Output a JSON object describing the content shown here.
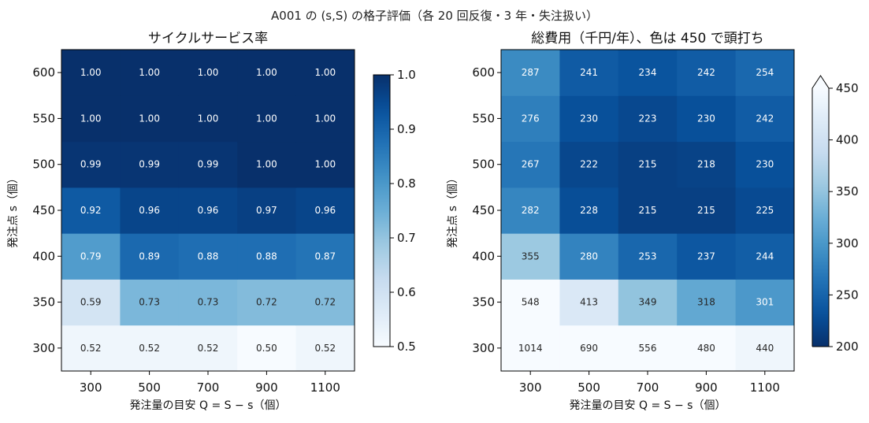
{
  "figure": {
    "suptitle": "A001 の (s,S) の格子評価（各 20 回反復・3 年・失注扱い）"
  },
  "chart_data": [
    {
      "type": "heatmap",
      "title": "サイクルサービス率",
      "xlabel": "発注量の目安 Q = S − s（個）",
      "ylabel": "発注点 s（個）",
      "x": [
        "300",
        "500",
        "700",
        "900",
        "1100"
      ],
      "y": [
        "300",
        "350",
        "400",
        "450",
        "500",
        "550",
        "600"
      ],
      "values": [
        [
          0.52,
          0.52,
          0.52,
          0.5,
          0.52
        ],
        [
          0.59,
          0.73,
          0.73,
          0.72,
          0.72
        ],
        [
          0.79,
          0.89,
          0.88,
          0.88,
          0.87
        ],
        [
          0.92,
          0.96,
          0.96,
          0.97,
          0.96
        ],
        [
          0.99,
          0.99,
          0.99,
          1.0,
          1.0
        ],
        [
          1.0,
          1.0,
          1.0,
          1.0,
          1.0
        ],
        [
          1.0,
          1.0,
          1.0,
          1.0,
          1.0
        ]
      ],
      "value_labels": [
        [
          "0.52",
          "0.52",
          "0.52",
          "0.50",
          "0.52"
        ],
        [
          "0.59",
          "0.73",
          "0.73",
          "0.72",
          "0.72"
        ],
        [
          "0.79",
          "0.89",
          "0.88",
          "0.88",
          "0.87"
        ],
        [
          "0.92",
          "0.96",
          "0.96",
          "0.97",
          "0.96"
        ],
        [
          "0.99",
          "0.99",
          "0.99",
          "1.00",
          "1.00"
        ],
        [
          "1.00",
          "1.00",
          "1.00",
          "1.00",
          "1.00"
        ],
        [
          "1.00",
          "1.00",
          "1.00",
          "1.00",
          "1.00"
        ]
      ],
      "colormap": "Blues",
      "reverse_colormap": false,
      "vmin": 0.5,
      "vmax": 1.0,
      "colorbar_ticks": [
        "0.5",
        "0.6",
        "0.7",
        "0.8",
        "0.9",
        "1.0"
      ],
      "colorbar_extend_max": false
    },
    {
      "type": "heatmap",
      "title": "総費用（千円/年）、色は 450 で頭打ち",
      "xlabel": "発注量の目安 Q = S − s（個）",
      "ylabel": "発注点 s（個）",
      "x": [
        "300",
        "500",
        "700",
        "900",
        "1100"
      ],
      "y": [
        "300",
        "350",
        "400",
        "450",
        "500",
        "550",
        "600"
      ],
      "values": [
        [
          1014,
          690,
          556,
          480,
          440
        ],
        [
          548,
          413,
          349,
          318,
          301
        ],
        [
          355,
          280,
          253,
          237,
          244
        ],
        [
          282,
          228,
          215,
          215,
          225
        ],
        [
          267,
          222,
          215,
          218,
          230
        ],
        [
          276,
          230,
          223,
          230,
          242
        ],
        [
          287,
          241,
          234,
          242,
          254
        ]
      ],
      "value_labels": [
        [
          "1014",
          "690",
          "556",
          "480",
          "440"
        ],
        [
          "548",
          "413",
          "349",
          "318",
          "301"
        ],
        [
          "355",
          "280",
          "253",
          "237",
          "244"
        ],
        [
          "282",
          "228",
          "215",
          "215",
          "225"
        ],
        [
          "267",
          "222",
          "215",
          "218",
          "230"
        ],
        [
          "276",
          "230",
          "223",
          "230",
          "242"
        ],
        [
          "287",
          "241",
          "234",
          "242",
          "254"
        ]
      ],
      "colormap": "Blues",
      "reverse_colormap": true,
      "vmin": 200,
      "vmax": 450,
      "colorbar_ticks": [
        "200",
        "250",
        "300",
        "350",
        "400",
        "450"
      ],
      "colorbar_extend_max": true
    }
  ]
}
